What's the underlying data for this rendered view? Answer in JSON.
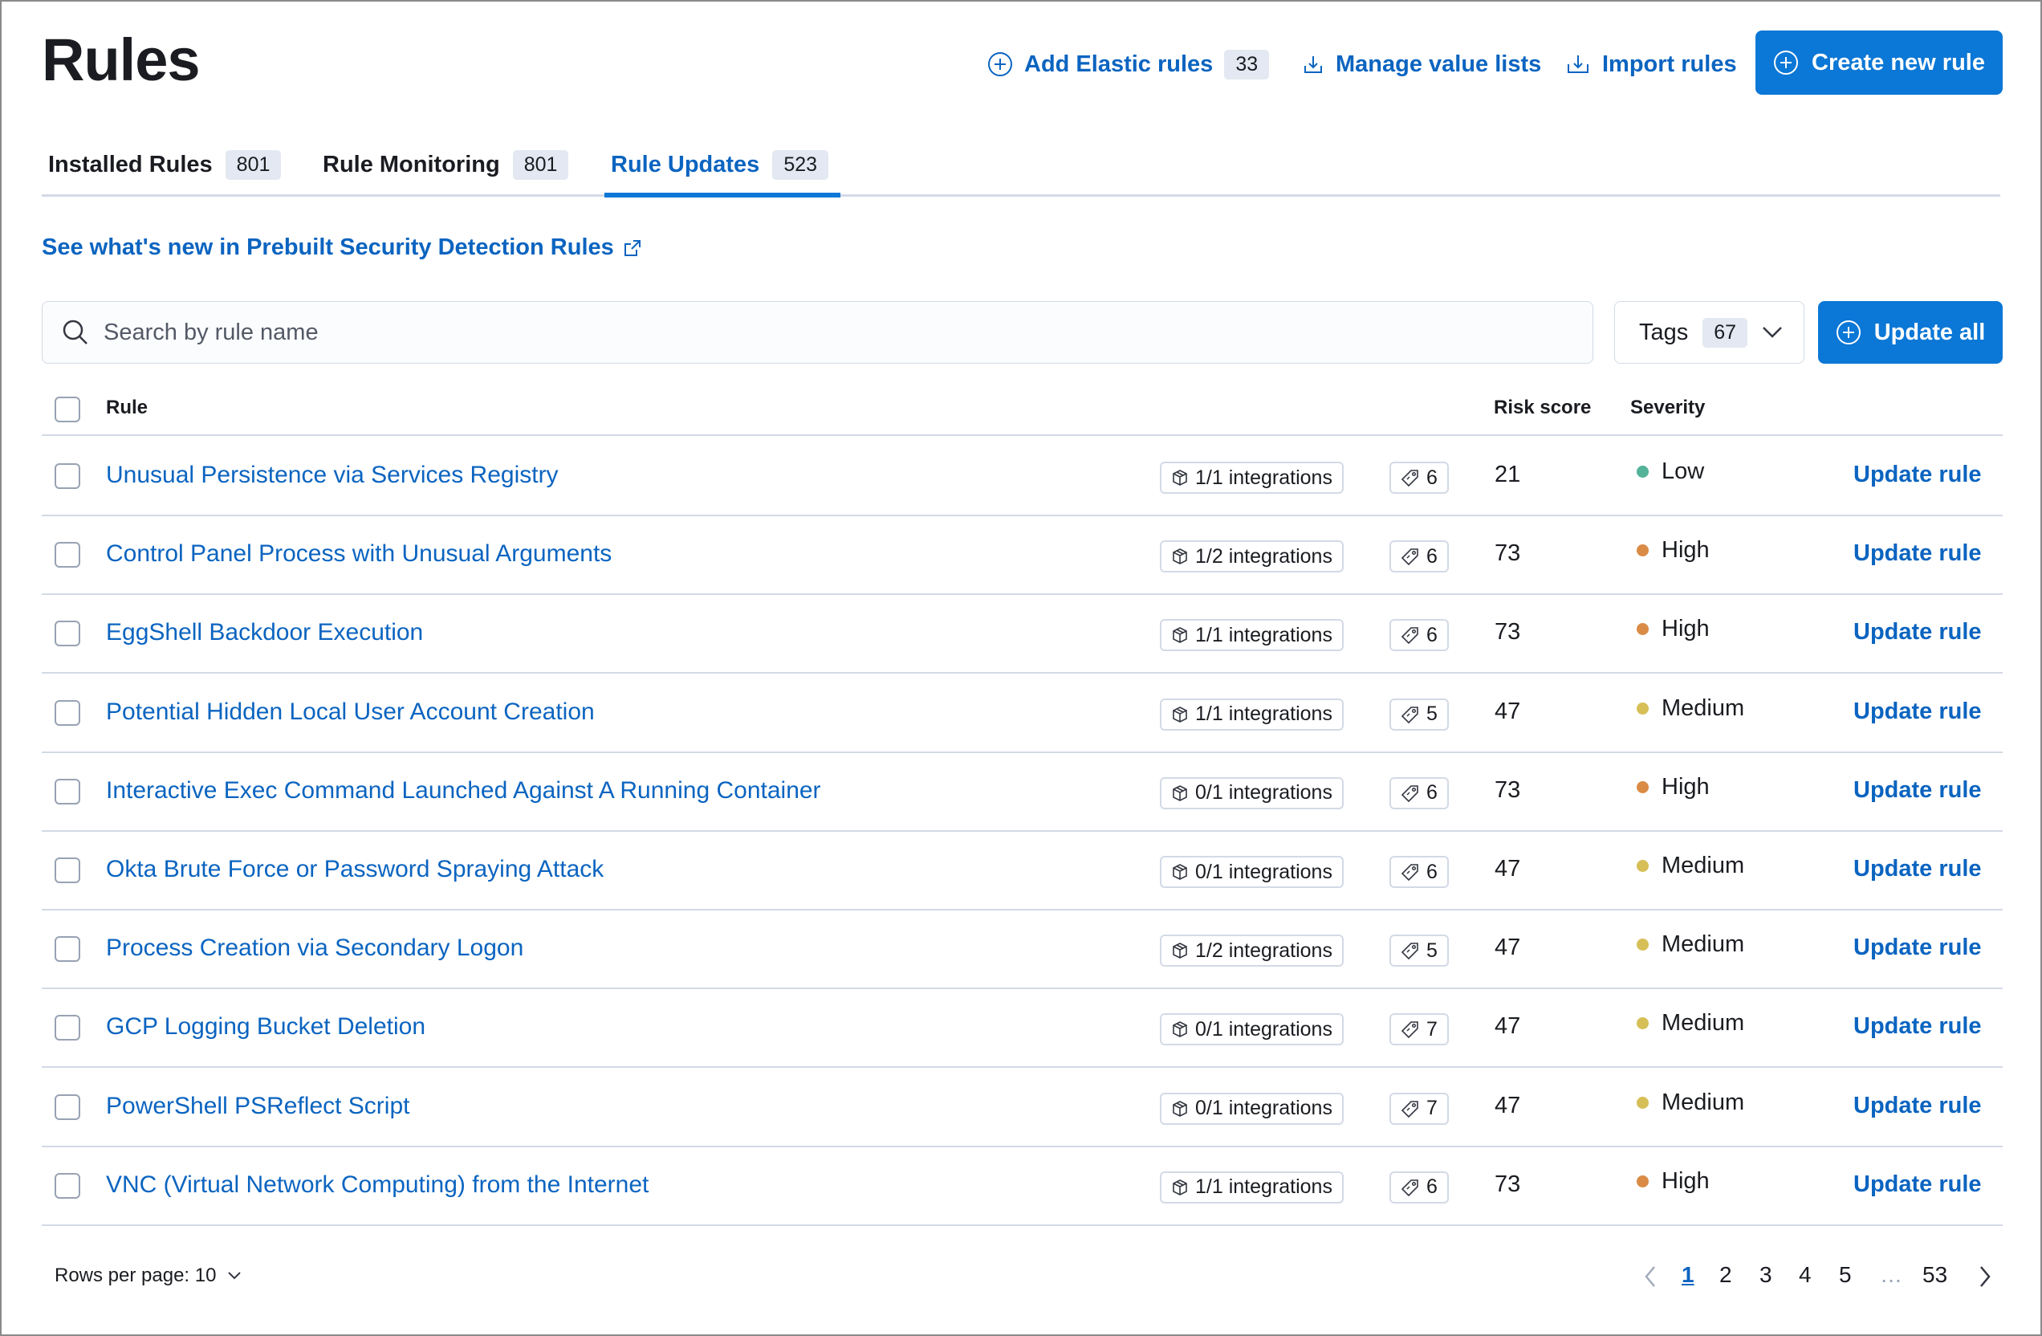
{
  "page_title": "Rules",
  "header": {
    "add_elastic_rules": "Add Elastic rules",
    "add_elastic_rules_count": "33",
    "manage_value_lists": "Manage value lists",
    "import_rules": "Import rules",
    "create_new_rule": "Create new rule"
  },
  "tabs": [
    {
      "label": "Installed Rules",
      "count": "801"
    },
    {
      "label": "Rule Monitoring",
      "count": "801"
    },
    {
      "label": "Rule Updates",
      "count": "523",
      "selected": true
    }
  ],
  "whats_new_link": "See what's new in Prebuilt Security Detection Rules",
  "search": {
    "placeholder": "Search by rule name",
    "value": ""
  },
  "tags_filter": {
    "label": "Tags",
    "count": "67"
  },
  "update_all": "Update all",
  "columns": {
    "rule": "Rule",
    "risk_score": "Risk score",
    "severity": "Severity"
  },
  "severity_colors": {
    "Low": "#54b399",
    "High": "#da8b45",
    "Medium": "#d6bf57"
  },
  "rows": [
    {
      "name": "Unusual Persistence via Services Registry",
      "integrations": "1/1 integrations",
      "tags": "6",
      "risk": "21",
      "severity": "Low",
      "action": "Update rule"
    },
    {
      "name": "Control Panel Process with Unusual Arguments",
      "integrations": "1/2 integrations",
      "tags": "6",
      "risk": "73",
      "severity": "High",
      "action": "Update rule"
    },
    {
      "name": "EggShell Backdoor Execution",
      "integrations": "1/1 integrations",
      "tags": "6",
      "risk": "73",
      "severity": "High",
      "action": "Update rule"
    },
    {
      "name": "Potential Hidden Local User Account Creation",
      "integrations": "1/1 integrations",
      "tags": "5",
      "risk": "47",
      "severity": "Medium",
      "action": "Update rule"
    },
    {
      "name": "Interactive Exec Command Launched Against A Running Container",
      "integrations": "0/1 integrations",
      "tags": "6",
      "risk": "73",
      "severity": "High",
      "action": "Update rule"
    },
    {
      "name": "Okta Brute Force or Password Spraying Attack",
      "integrations": "0/1 integrations",
      "tags": "6",
      "risk": "47",
      "severity": "Medium",
      "action": "Update rule"
    },
    {
      "name": "Process Creation via Secondary Logon",
      "integrations": "1/2 integrations",
      "tags": "5",
      "risk": "47",
      "severity": "Medium",
      "action": "Update rule"
    },
    {
      "name": "GCP Logging Bucket Deletion",
      "integrations": "0/1 integrations",
      "tags": "7",
      "risk": "47",
      "severity": "Medium",
      "action": "Update rule"
    },
    {
      "name": "PowerShell PSReflect Script",
      "integrations": "0/1 integrations",
      "tags": "7",
      "risk": "47",
      "severity": "Medium",
      "action": "Update rule"
    },
    {
      "name": "VNC (Virtual Network Computing) from the Internet",
      "integrations": "1/1 integrations",
      "tags": "6",
      "risk": "73",
      "severity": "High",
      "action": "Update rule"
    }
  ],
  "footer": {
    "rows_per_page": "Rows per page: 10",
    "pages": [
      "1",
      "2",
      "3",
      "4",
      "5",
      "…",
      "53"
    ],
    "current_page": "1"
  }
}
